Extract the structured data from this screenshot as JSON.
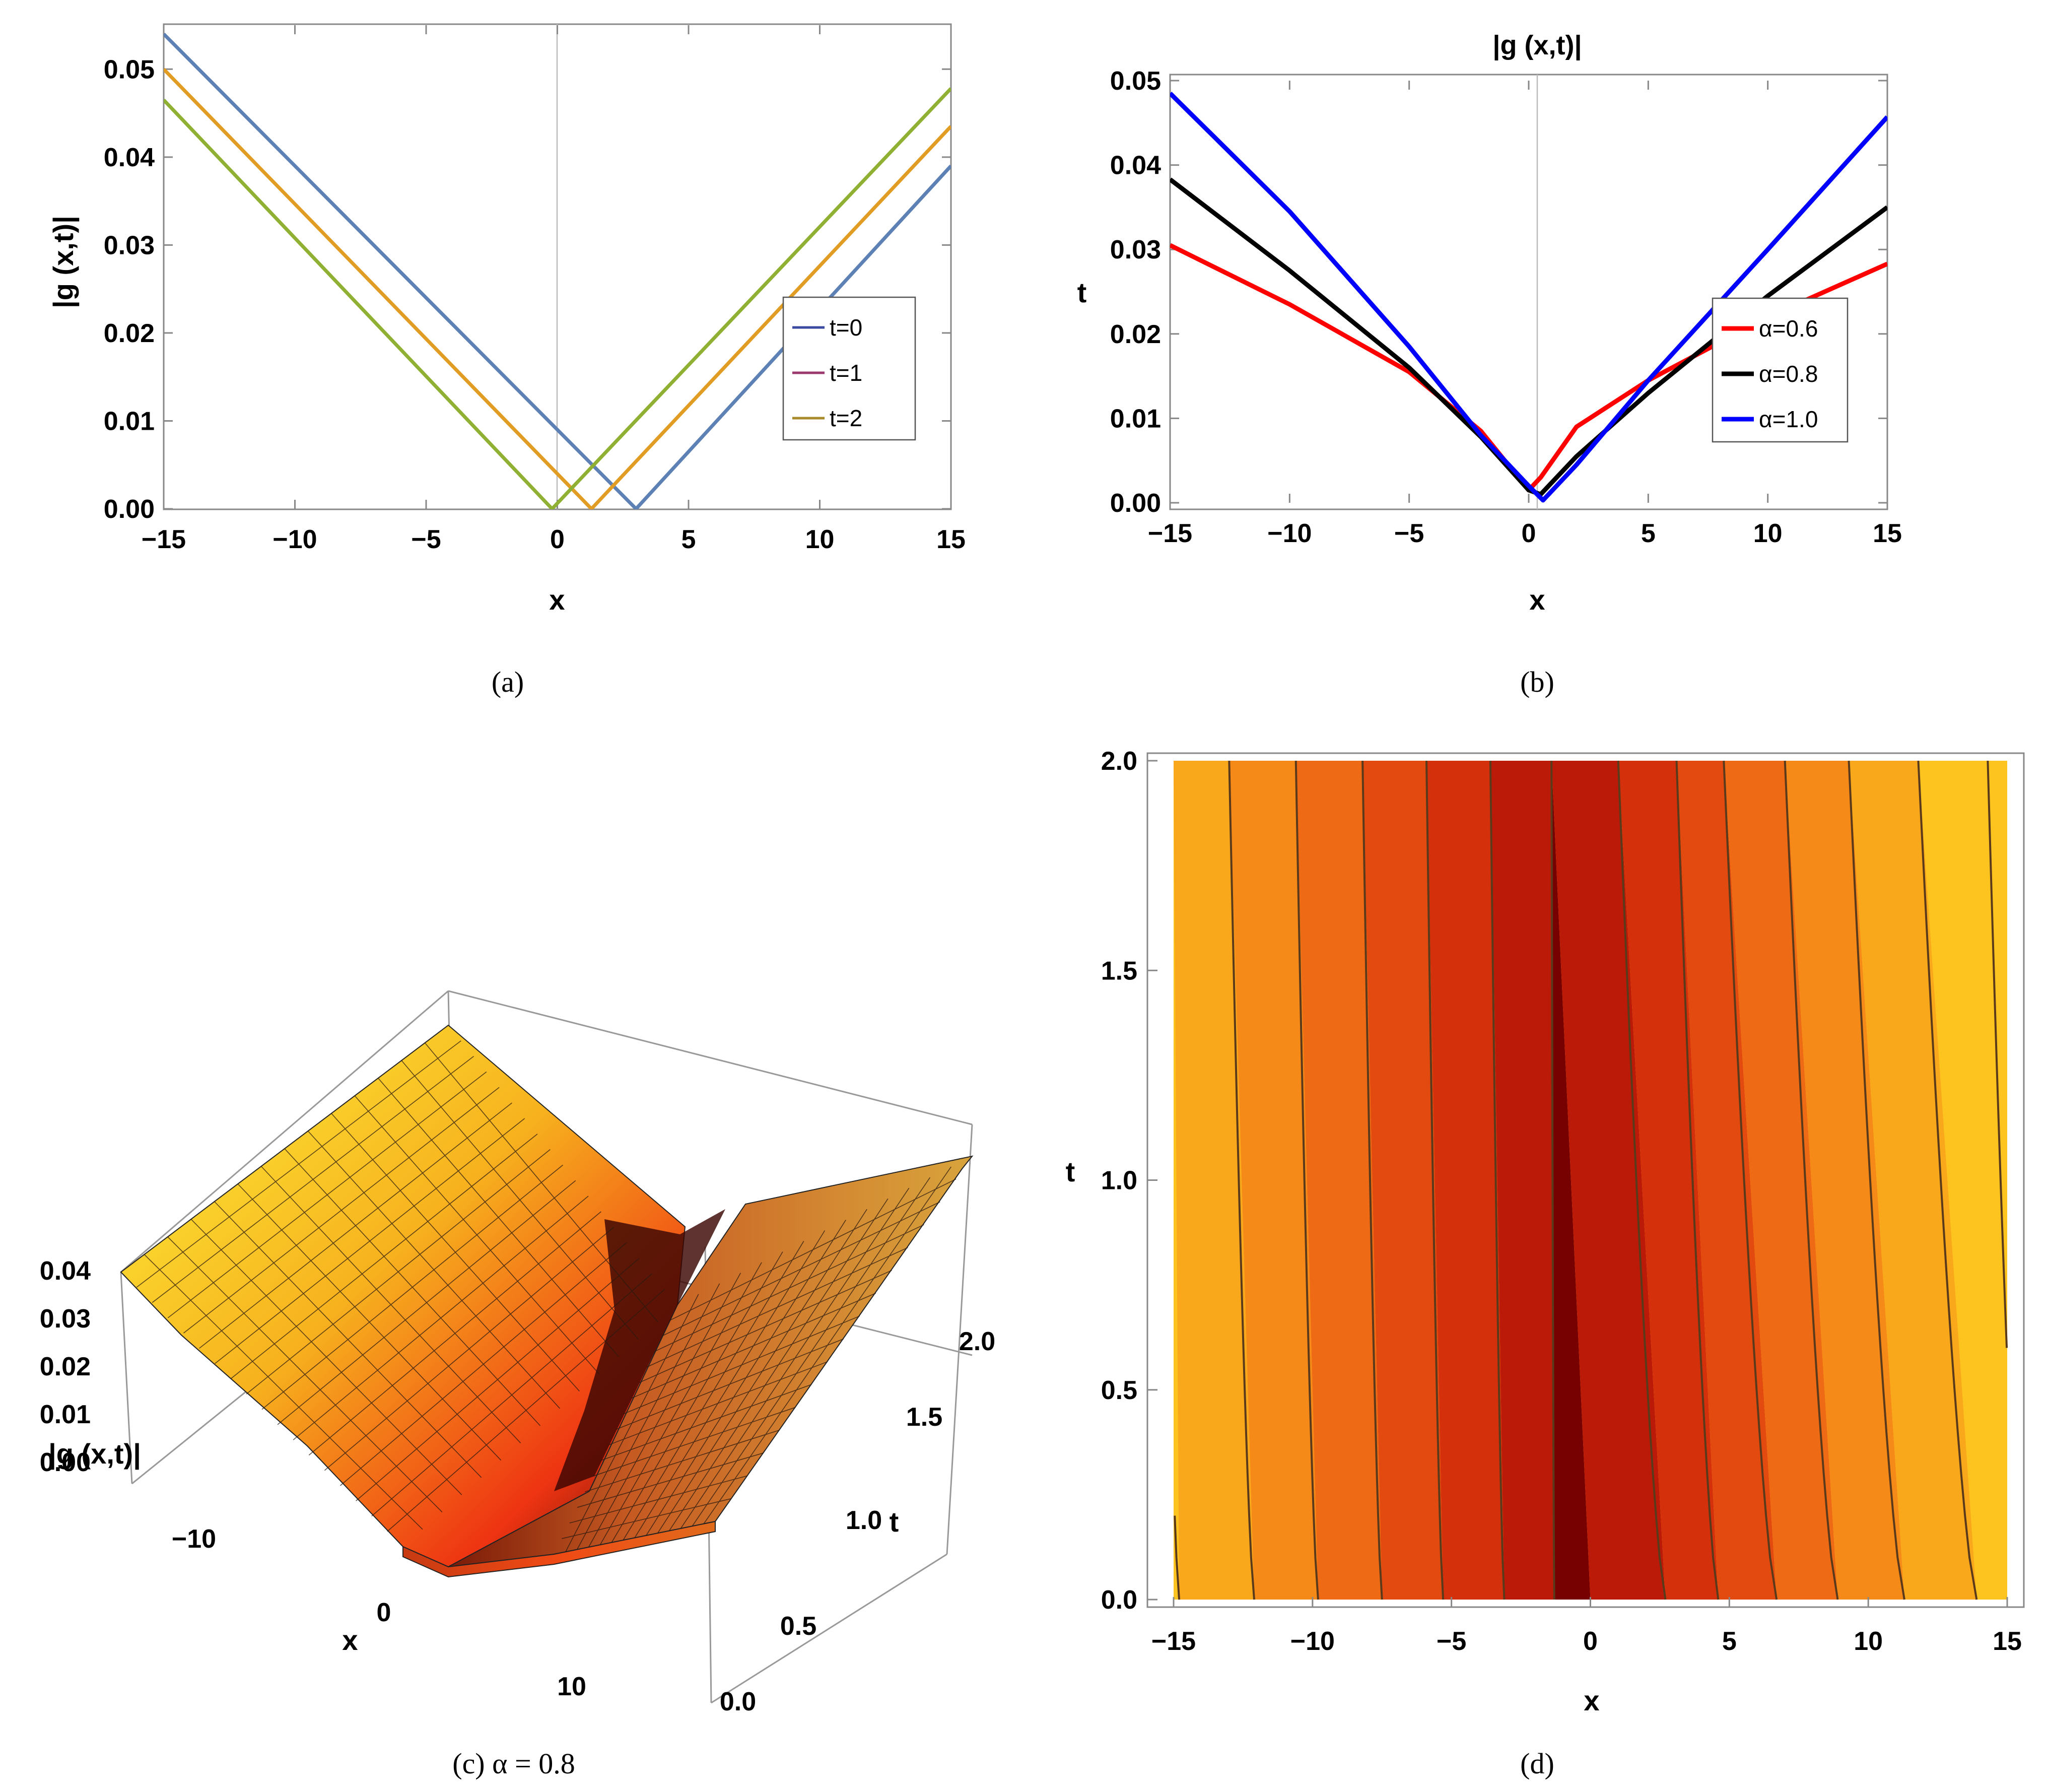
{
  "chart_data": [
    {
      "id": "a",
      "type": "line",
      "caption": "(a)",
      "title": "",
      "xlabel": "x",
      "ylabel": "|ɡ (x,t)|",
      "xlim": [
        -15,
        15
      ],
      "ylim": [
        0,
        0.055
      ],
      "xticks": [
        "−15",
        "−10",
        "−5",
        "0",
        "5",
        "10",
        "15"
      ],
      "yticks": [
        "0.00",
        "0.01",
        "0.02",
        "0.03",
        "0.04",
        "0.05"
      ],
      "legend": [
        {
          "label": "t=0",
          "color": "#3b4ba0"
        },
        {
          "label": "t=1",
          "color": "#9b3a6e"
        },
        {
          "label": "t=2",
          "color": "#a88a2a"
        }
      ],
      "series": [
        {
          "name": "t=0",
          "color": "#5e81b5",
          "x": [
            -15,
            3,
            15
          ],
          "y": [
            0.054,
            0.0,
            0.039
          ]
        },
        {
          "name": "t=1",
          "color": "#e19c24",
          "x": [
            -15,
            1.3,
            15
          ],
          "y": [
            0.05,
            0.0,
            0.0435
          ]
        },
        {
          "name": "t=2",
          "color": "#8fb032",
          "x": [
            -15,
            -0.2,
            15
          ],
          "y": [
            0.0465,
            0.0,
            0.0478
          ]
        }
      ]
    },
    {
      "id": "b",
      "type": "line",
      "caption": "(b)",
      "title": "|ɡ (x,t)|",
      "xlabel": "x",
      "ylabel": "t",
      "xlim": [
        -15,
        15
      ],
      "ylim": [
        0,
        0.05
      ],
      "xticks": [
        "−15",
        "−10",
        "−5",
        "0",
        "5",
        "10",
        "15"
      ],
      "yticks": [
        "0.00",
        "0.01",
        "0.02",
        "0.03",
        "0.04",
        "0.05"
      ],
      "legend": [
        {
          "label": "α=0.6",
          "color": "#ff0000"
        },
        {
          "label": "α=0.8",
          "color": "#000000"
        },
        {
          "label": "α=1.0",
          "color": "#0000ff"
        }
      ],
      "series": [
        {
          "name": "α=0.6",
          "color": "#ff0000",
          "x": [
            -15,
            -10,
            -5,
            -2,
            0,
            0.5,
            2,
            5,
            10,
            15
          ],
          "y": [
            0.0305,
            0.0235,
            0.0155,
            0.0085,
            0.0015,
            0.003,
            0.009,
            0.0145,
            0.022,
            0.0283
          ]
        },
        {
          "name": "α=0.8",
          "color": "#000000",
          "x": [
            -15,
            -10,
            -5,
            -2,
            0,
            0.5,
            2,
            5,
            10,
            15
          ],
          "y": [
            0.0383,
            0.0275,
            0.016,
            0.0078,
            0.0015,
            0.001,
            0.0055,
            0.013,
            0.0245,
            0.035
          ]
        },
        {
          "name": "α=1.0",
          "color": "#0000ff",
          "x": [
            -15,
            -10,
            -5,
            -2,
            0,
            0.6,
            2,
            5,
            10,
            15
          ],
          "y": [
            0.0485,
            0.0345,
            0.0185,
            0.008,
            0.002,
            0.0003,
            0.0045,
            0.0145,
            0.03,
            0.0457
          ]
        }
      ]
    },
    {
      "id": "c",
      "type": "surface3d",
      "caption": "(c) α = 0.8",
      "xlabel": "x",
      "ylabel": "t",
      "zlabel": "|ɡ (x,t)|",
      "xticks": [
        "−10",
        "0",
        "10"
      ],
      "yticks": [
        "0.0",
        "0.5",
        "1.0",
        "1.5",
        "2.0"
      ],
      "zticks": [
        "0.00",
        "0.01",
        "0.02",
        "0.03",
        "0.04"
      ]
    },
    {
      "id": "d",
      "type": "contour",
      "caption": "(d)",
      "xlabel": "x",
      "ylabel": "t",
      "xlim": [
        -15,
        15
      ],
      "ylim": [
        0,
        2
      ],
      "xticks": [
        "−15",
        "−10",
        "−5",
        "0",
        "5",
        "10",
        "15"
      ],
      "yticks": [
        "0.0",
        "0.5",
        "1.0",
        "1.5",
        "2.0"
      ],
      "band_colors": [
        "#fdc41f",
        "#f9a81b",
        "#f68a18",
        "#ef6a14",
        "#e34a10",
        "#d4300c",
        "#bb1a08",
        "#770000"
      ]
    }
  ]
}
